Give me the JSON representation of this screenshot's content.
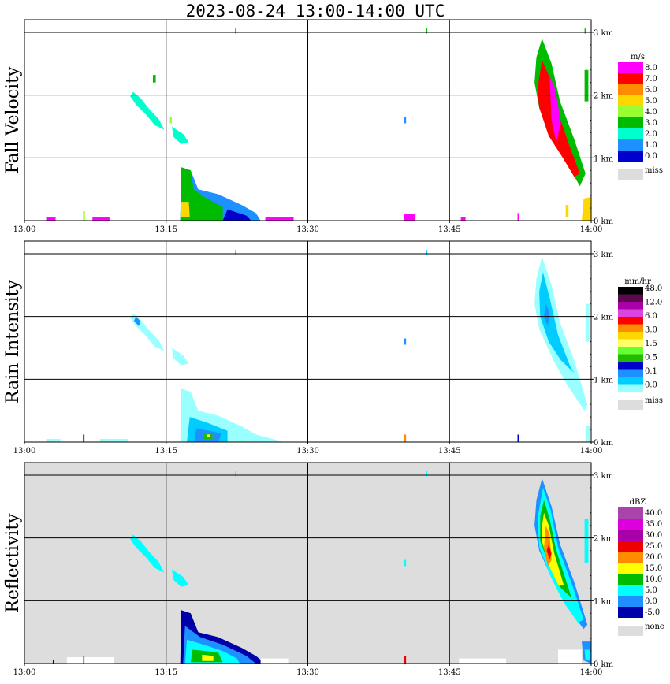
{
  "title": "2023-08-24   13:00-14:00 UTC",
  "colors": {
    "grid": "#000000",
    "missing": "#dddddd"
  },
  "chart_data": [
    {
      "type": "heatmap",
      "ylabel": "Fall Velocity",
      "x_ticks": [
        "13:00",
        "13:15",
        "13:30",
        "13:45",
        "14:00"
      ],
      "y_ticks": [
        "0 km",
        "1 km",
        "2 km",
        "3 km"
      ],
      "ylim_km": [
        0,
        3.2
      ],
      "background": "#ffffff",
      "colorbar": {
        "unit": "m/s",
        "labels": [
          "8.0",
          "7.0",
          "6.0",
          "5.0",
          "4.0",
          "3.0",
          "2.0",
          "1.0",
          "0.0"
        ],
        "colors": [
          "#ff00ff",
          "#ff0000",
          "#ff8c00",
          "#ffd700",
          "#99ff33",
          "#00bb00",
          "#00ffcc",
          "#1e90ff",
          "#0000cc"
        ],
        "missing_label": "miss"
      }
    },
    {
      "type": "heatmap",
      "ylabel": "Rain Intensity",
      "x_ticks": [
        "13:00",
        "13:15",
        "13:30",
        "13:45",
        "14:00"
      ],
      "y_ticks": [
        "0 km",
        "1 km",
        "2 km",
        "3 km"
      ],
      "ylim_km": [
        0,
        3.2
      ],
      "background": "#ffffff",
      "colorbar": {
        "unit": "mm/hr",
        "labels": [
          "48.0",
          "12.0",
          "6.0",
          "3.0",
          "1.5",
          "0.5",
          "0.1",
          "0.0"
        ],
        "colors": [
          "#000000",
          "#5a0a4a",
          "#aa00aa",
          "#dd44dd",
          "#ff0000",
          "#ff8c00",
          "#ffd700",
          "#ffff66",
          "#66ff33",
          "#22bb00",
          "#0000cc",
          "#1e90ff",
          "#00ccff",
          "#99ffff"
        ],
        "missing_label": "miss"
      }
    },
    {
      "type": "heatmap",
      "ylabel": "Reflectivity",
      "x_ticks": [
        "13:00",
        "13:15",
        "13:30",
        "13:45",
        "14:00"
      ],
      "y_ticks": [
        "0 km",
        "1 km",
        "2 km",
        "3 km"
      ],
      "ylim_km": [
        0,
        3.2
      ],
      "background": "#dddddd",
      "colorbar": {
        "unit": "dBZ",
        "labels": [
          "40.0",
          "35.0",
          "30.0",
          "25.0",
          "20.0",
          "15.0",
          "10.0",
          "5.0",
          "0.0",
          "-5.0"
        ],
        "colors": [
          "#aa44aa",
          "#dd00dd",
          "#aa00aa",
          "#ee0000",
          "#ff8c00",
          "#ffff00",
          "#00bb00",
          "#00ffff",
          "#1e90ff",
          "#0000aa"
        ],
        "missing_label": "none"
      }
    }
  ]
}
